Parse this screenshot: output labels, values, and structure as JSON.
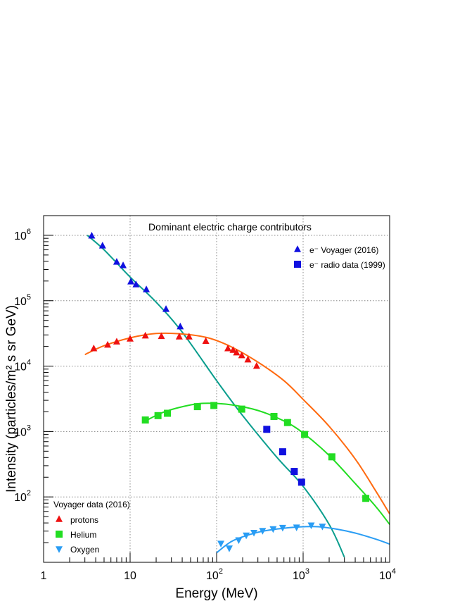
{
  "chart_data": {
    "type": "scatter",
    "title": "Dominant electric charge contributors",
    "xlabel": "Energy (MeV)",
    "ylabel": "Intensity (particles/m² s sr GeV)",
    "x_scale": "log",
    "y_scale": "log",
    "xlim": [
      1,
      10000
    ],
    "ylim": [
      10,
      2000000
    ],
    "grid": true,
    "x_ticks": [
      {
        "value": 1,
        "label": "1",
        "sup": ""
      },
      {
        "value": 10,
        "label": "10",
        "sup": ""
      },
      {
        "value": 100,
        "label": "10",
        "sup": "2"
      },
      {
        "value": 1000,
        "label": "10",
        "sup": "3"
      },
      {
        "value": 10000,
        "label": "10",
        "sup": "4"
      }
    ],
    "y_ticks": [
      {
        "value": 100,
        "label": "10",
        "sup": "2"
      },
      {
        "value": 1000,
        "label": "10",
        "sup": "3"
      },
      {
        "value": 10000,
        "label": "10",
        "sup": "4"
      },
      {
        "value": 100000,
        "label": "10",
        "sup": "5"
      },
      {
        "value": 1000000,
        "label": "10",
        "sup": "6"
      }
    ],
    "legend_top": {
      "placement": "top-right",
      "entries": [
        {
          "label": "e⁻ Voyager (2016)",
          "marker": "triangle-up",
          "color": "#1010e0"
        },
        {
          "label": "e⁻ radio data (1999)",
          "marker": "square",
          "color": "#1010e0"
        }
      ]
    },
    "legend_bottom": {
      "placement": "bottom-left",
      "header": "Voyager data (2016)",
      "entries": [
        {
          "label": "protons",
          "marker": "triangle-up",
          "color": "#ee1111"
        },
        {
          "label": "Helium",
          "marker": "square",
          "color": "#22dd22"
        },
        {
          "label": "Oxygen",
          "marker": "triangle-down",
          "color": "#2a9df4"
        }
      ]
    },
    "series": [
      {
        "key": "electrons_voyager",
        "marker": "triangle-up",
        "color": "#1010e0",
        "points": [
          [
            3.6,
            980000
          ],
          [
            4.8,
            690000
          ],
          [
            7,
            390000
          ],
          [
            8.3,
            345000
          ],
          [
            10.2,
            195000
          ],
          [
            11.7,
            176000
          ],
          [
            15.4,
            148000
          ],
          [
            26,
            74000
          ],
          [
            38,
            40000
          ]
        ]
      },
      {
        "key": "electrons_radio",
        "marker": "square",
        "color": "#1010e0",
        "points": [
          [
            380,
            1080
          ],
          [
            580,
            490
          ],
          [
            790,
            245
          ],
          [
            960,
            168
          ]
        ]
      },
      {
        "key": "protons",
        "marker": "triangle-up",
        "color": "#ee1111",
        "points": [
          [
            3.8,
            18500
          ],
          [
            5.5,
            21000
          ],
          [
            7,
            23500
          ],
          [
            10,
            26000
          ],
          [
            15,
            29000
          ],
          [
            23,
            28500
          ],
          [
            37,
            28000
          ],
          [
            48,
            28000
          ],
          [
            75,
            24000
          ],
          [
            135,
            18500
          ],
          [
            155,
            17500
          ],
          [
            170,
            16000
          ],
          [
            195,
            14500
          ],
          [
            230,
            12500
          ],
          [
            290,
            10000
          ]
        ]
      },
      {
        "key": "helium",
        "marker": "square",
        "color": "#22dd22",
        "points": [
          [
            15,
            1500
          ],
          [
            21,
            1750
          ],
          [
            27,
            1900
          ],
          [
            60,
            2400
          ],
          [
            93,
            2500
          ],
          [
            195,
            2200
          ],
          [
            460,
            1700
          ],
          [
            660,
            1370
          ],
          [
            1040,
            900
          ],
          [
            2150,
            410
          ],
          [
            5300,
            95
          ]
        ]
      },
      {
        "key": "oxygen",
        "marker": "triangle-down",
        "color": "#2a9df4",
        "points": [
          [
            112,
            19.5
          ],
          [
            140,
            16.5
          ],
          [
            180,
            22
          ],
          [
            220,
            26
          ],
          [
            270,
            28.5
          ],
          [
            340,
            30.5
          ],
          [
            450,
            32.5
          ],
          [
            580,
            34
          ],
          [
            840,
            34.5
          ],
          [
            1240,
            37
          ],
          [
            1670,
            35.5
          ]
        ]
      }
    ],
    "fits": [
      {
        "key": "electron_fit",
        "color": "#0b9e8e",
        "points": [
          [
            3.2,
            1000000
          ],
          [
            5,
            600000
          ],
          [
            10,
            230000
          ],
          [
            20,
            95000
          ],
          [
            40,
            33000
          ],
          [
            100,
            6000
          ],
          [
            200,
            1750
          ],
          [
            500,
            400
          ],
          [
            1000,
            145
          ],
          [
            2000,
            38
          ],
          [
            3000,
            12
          ]
        ]
      },
      {
        "key": "proton_fit",
        "color": "#ff6a10",
        "points": [
          [
            3,
            15000
          ],
          [
            5,
            20500
          ],
          [
            10,
            27000
          ],
          [
            20,
            31500
          ],
          [
            40,
            31000
          ],
          [
            80,
            27000
          ],
          [
            150,
            19500
          ],
          [
            300,
            11500
          ],
          [
            600,
            6000
          ],
          [
            1000,
            3100
          ],
          [
            2000,
            1200
          ],
          [
            4000,
            380
          ],
          [
            7000,
            120
          ],
          [
            10000,
            55
          ]
        ]
      },
      {
        "key": "helium_fit",
        "color": "#22dd22",
        "points": [
          [
            15,
            1450
          ],
          [
            25,
            2000
          ],
          [
            50,
            2550
          ],
          [
            80,
            2700
          ],
          [
            150,
            2550
          ],
          [
            300,
            2100
          ],
          [
            600,
            1450
          ],
          [
            1000,
            950
          ],
          [
            2000,
            430
          ],
          [
            4000,
            160
          ],
          [
            7000,
            70
          ],
          [
            10000,
            38
          ]
        ]
      },
      {
        "key": "oxygen_fit",
        "color": "#2a9df4",
        "points": [
          [
            100,
            14
          ],
          [
            150,
            21
          ],
          [
            250,
            27
          ],
          [
            400,
            31
          ],
          [
            700,
            34
          ],
          [
            1000,
            35
          ],
          [
            1500,
            35
          ],
          [
            2500,
            32
          ],
          [
            4000,
            28
          ],
          [
            7000,
            22.5
          ],
          [
            10000,
            19
          ]
        ]
      }
    ]
  }
}
